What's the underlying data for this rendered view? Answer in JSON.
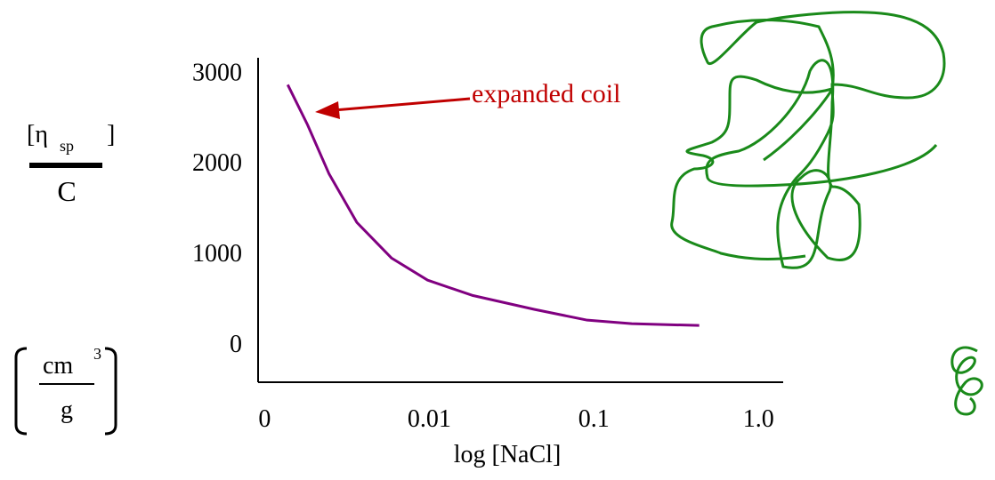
{
  "chart_data": {
    "type": "line",
    "x_label": "log [NaCl]",
    "y_label": [
      "[η",
      "sp",
      "]",
      "C"
    ],
    "y_unit": [
      "cm",
      "3",
      "g"
    ],
    "annotation": "expanded coil",
    "x": [
      0.14,
      0.26,
      0.39,
      0.56,
      0.77,
      0.99,
      1.26,
      1.64,
      1.96,
      2.23,
      2.64
    ],
    "series": [
      {
        "color": "#800080",
        "values": [
          2853,
          2412,
          1873,
          1333,
          941,
          696,
          529,
          373,
          255,
          216,
          196
        ]
      }
    ],
    "xlim": [
      -0.04,
      3.15
    ],
    "xticks": [
      0,
      {
        "value": 1,
        "label": "0.01"
      },
      {
        "value": 2,
        "label": "0.1"
      },
      {
        "value": 3,
        "label": "1.0"
      }
    ],
    "ylim": [
      -430,
      3150
    ],
    "yticks": [
      0,
      1000,
      2000,
      3000
    ]
  }
}
